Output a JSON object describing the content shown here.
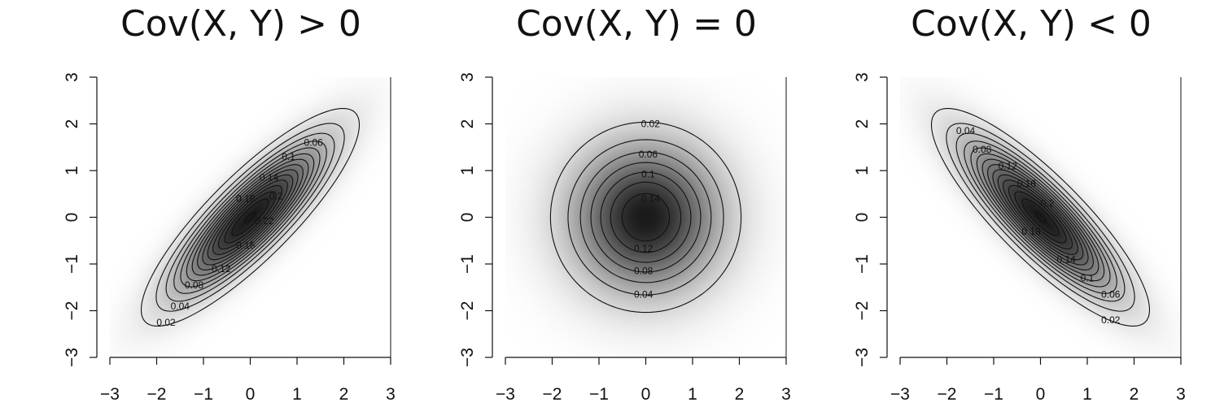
{
  "chart_data": [
    {
      "type": "contour",
      "title": "Cov(X, Y) > 0",
      "rho": 0.85,
      "xlim": [
        -3,
        3
      ],
      "ylim": [
        -3,
        3
      ],
      "x_ticks": [
        -3,
        -2,
        -1,
        0,
        1,
        2,
        3
      ],
      "y_ticks": [
        -3,
        -2,
        -1,
        0,
        1,
        2,
        3
      ],
      "contour_levels": [
        0.02,
        0.04,
        0.06,
        0.08,
        0.1,
        0.12,
        0.14,
        0.16,
        0.18,
        0.2,
        0.22,
        0.24,
        0.26,
        0.28,
        0.3
      ],
      "contour_labels": [
        {
          "label": "0.02",
          "x": -1.8,
          "y": -2.25
        },
        {
          "label": "0.04",
          "x": -1.5,
          "y": -1.9
        },
        {
          "label": "0.06",
          "x": 1.35,
          "y": 1.6
        },
        {
          "label": "0.08",
          "x": -1.2,
          "y": -1.45
        },
        {
          "label": "0.1",
          "x": 0.82,
          "y": 1.3
        },
        {
          "label": "0.12",
          "x": -0.62,
          "y": -1.1
        },
        {
          "label": "0.14",
          "x": 0.4,
          "y": 0.85
        },
        {
          "label": "0.16",
          "x": -0.1,
          "y": -0.6
        },
        {
          "label": "0.18",
          "x": -0.1,
          "y": 0.4
        },
        {
          "label": "0.2",
          "x": 0.55,
          "y": 0.45
        },
        {
          "label": "0.22",
          "x": 0.3,
          "y": -0.08
        }
      ]
    },
    {
      "type": "contour",
      "title": "Cov(X, Y) = 0",
      "rho": 0,
      "xlim": [
        -3,
        3
      ],
      "ylim": [
        -3,
        3
      ],
      "x_ticks": [
        -3,
        -2,
        -1,
        0,
        1,
        2,
        3
      ],
      "y_ticks": [
        -3,
        -2,
        -1,
        0,
        1,
        2,
        3
      ],
      "contour_levels": [
        0.02,
        0.04,
        0.06,
        0.08,
        0.1,
        0.12,
        0.14
      ],
      "contour_labels": [
        {
          "label": "0.02",
          "x": 0.1,
          "y": 2.0
        },
        {
          "label": "0.04",
          "x": -0.05,
          "y": -1.65
        },
        {
          "label": "0.06",
          "x": 0.05,
          "y": 1.35
        },
        {
          "label": "0.08",
          "x": -0.05,
          "y": -1.15
        },
        {
          "label": "0.1",
          "x": 0.05,
          "y": 0.92
        },
        {
          "label": "0.12",
          "x": -0.05,
          "y": -0.67
        },
        {
          "label": "0.14",
          "x": 0.1,
          "y": 0.4
        }
      ]
    },
    {
      "type": "contour",
      "title": "Cov(X, Y) < 0",
      "rho": -0.85,
      "xlim": [
        -3,
        3
      ],
      "ylim": [
        -3,
        3
      ],
      "x_ticks": [
        -3,
        -2,
        -1,
        0,
        1,
        2,
        3
      ],
      "y_ticks": [
        -3,
        -2,
        -1,
        0,
        1,
        2,
        3
      ],
      "contour_levels": [
        0.02,
        0.04,
        0.06,
        0.08,
        0.1,
        0.12,
        0.14,
        0.16,
        0.18,
        0.2,
        0.22,
        0.24,
        0.26,
        0.28,
        0.3
      ],
      "contour_labels": [
        {
          "label": "0.04",
          "x": -1.6,
          "y": 1.85
        },
        {
          "label": "0.08",
          "x": -1.25,
          "y": 1.45
        },
        {
          "label": "0.12",
          "x": -0.7,
          "y": 1.1
        },
        {
          "label": "0.16",
          "x": -0.3,
          "y": 0.72
        },
        {
          "label": "0.2",
          "x": 0.15,
          "y": 0.3
        },
        {
          "label": "0.18",
          "x": -0.2,
          "y": -0.3
        },
        {
          "label": "0.14",
          "x": 0.55,
          "y": -0.9
        },
        {
          "label": "0.1",
          "x": 1.0,
          "y": -1.3
        },
        {
          "label": "0.06",
          "x": 1.5,
          "y": -1.65
        },
        {
          "label": "0.02",
          "x": 1.5,
          "y": -2.2
        }
      ]
    }
  ]
}
